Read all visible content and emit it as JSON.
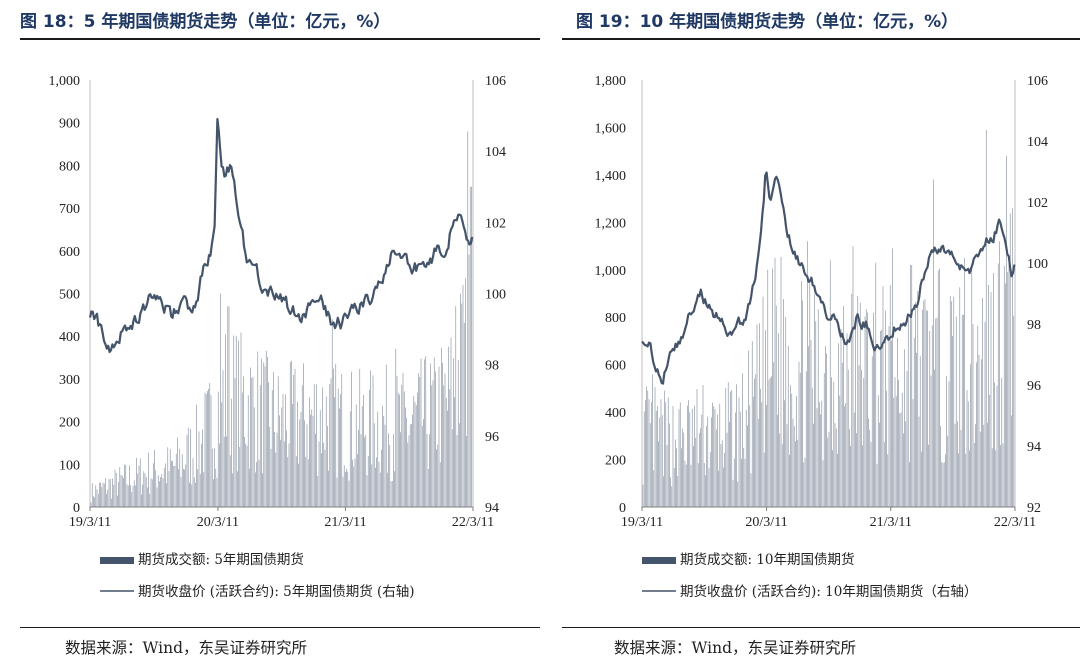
{
  "panels": [
    {
      "id": "left",
      "title": "图 18：5 年期国债期货走势（单位：亿元，%）",
      "source": "数据来源：Wind，东吴证券研究所",
      "legend": [
        "期货成交额: 5年期国债期货",
        "期货收盘价 (活跃合约): 5年期国债期货 (右轴)"
      ]
    },
    {
      "id": "right",
      "title": "图 19：10 年期国债期货走势（单位：亿元，%）",
      "source": "数据来源：Wind，东吴证券研究所",
      "legend": [
        "期货成交额: 10年期国债期货",
        "期货收盘价 (活跃合约): 10年期国债期货（右轴）"
      ]
    }
  ],
  "chart_data": [
    {
      "type": "bar+line",
      "x_ticks": [
        "19/3/11",
        "20/3/11",
        "21/3/11",
        "22/3/11"
      ],
      "x_range": [
        "2019-03-11",
        "2022-03-11"
      ],
      "left_axis": {
        "ticks": [
          "0",
          "100",
          "200",
          "300",
          "400",
          "500",
          "600",
          "700",
          "800",
          "900",
          "1,000"
        ],
        "ylim": [
          0,
          1000
        ]
      },
      "right_axis": {
        "ticks": [
          "94",
          "96",
          "98",
          "100",
          "102",
          "104",
          "106"
        ],
        "ylim": [
          94,
          106
        ]
      },
      "series": [
        {
          "name": "期货成交额: 5年期国债期货",
          "kind": "bar",
          "axis": "left",
          "color": "#44546a",
          "points": [
            [
              "2019-03-11",
              40
            ],
            [
              "2019-05-01",
              60
            ],
            [
              "2019-07-01",
              80
            ],
            [
              "2019-09-01",
              100
            ],
            [
              "2019-11-01",
              110
            ],
            [
              "2020-01-01",
              160
            ],
            [
              "2020-02-15",
              220
            ],
            [
              "2020-03-11",
              280
            ],
            [
              "2020-04-01",
              320
            ],
            [
              "2020-05-15",
              300
            ],
            [
              "2020-07-01",
              280
            ],
            [
              "2020-09-01",
              240
            ],
            [
              "2020-11-01",
              250
            ],
            [
              "2021-01-01",
              260
            ],
            [
              "2021-03-11",
              240
            ],
            [
              "2021-05-01",
              230
            ],
            [
              "2021-07-01",
              240
            ],
            [
              "2021-09-01",
              230
            ],
            [
              "2021-11-01",
              260
            ],
            [
              "2022-01-01",
              300
            ],
            [
              "2022-02-15",
              420
            ],
            [
              "2022-03-11",
              480
            ]
          ],
          "spikes": [
            [
              "2020-03-20",
              500
            ],
            [
              "2020-04-10",
              470
            ],
            [
              "2021-02-01",
              440
            ],
            [
              "2021-08-01",
              370
            ],
            [
              "2021-11-20",
              350
            ],
            [
              "2022-01-20",
              470
            ],
            [
              "2022-02-10",
              520
            ],
            [
              "2022-02-25",
              880
            ],
            [
              "2022-03-05",
              750
            ]
          ]
        },
        {
          "name": "期货收盘价 (活跃合约): 5年期国债期货 (右轴)",
          "kind": "line",
          "axis": "right",
          "color": "#44546a",
          "points": [
            [
              "2019-03-11",
              99.5
            ],
            [
              "2019-04-01",
              99.3
            ],
            [
              "2019-04-20",
              98.6
            ],
            [
              "2019-05-10",
              98.4
            ],
            [
              "2019-06-01",
              98.8
            ],
            [
              "2019-07-01",
              99.2
            ],
            [
              "2019-08-01",
              99.4
            ],
            [
              "2019-09-01",
              99.9
            ],
            [
              "2019-09-20",
              99.7
            ],
            [
              "2019-10-15",
              99.6
            ],
            [
              "2019-11-01",
              99.4
            ],
            [
              "2019-11-20",
              99.7
            ],
            [
              "2019-12-15",
              99.6
            ],
            [
              "2020-01-10",
              99.8
            ],
            [
              "2020-02-01",
              100.8
            ],
            [
              "2020-02-20",
              101.2
            ],
            [
              "2020-03-01",
              101.5
            ],
            [
              "2020-03-09",
              104.9
            ],
            [
              "2020-03-20",
              103.8
            ],
            [
              "2020-04-01",
              103.4
            ],
            [
              "2020-04-20",
              103.6
            ],
            [
              "2020-05-10",
              102.0
            ],
            [
              "2020-06-01",
              101.0
            ],
            [
              "2020-07-01",
              100.6
            ],
            [
              "2020-08-01",
              100.0
            ],
            [
              "2020-09-01",
              99.8
            ],
            [
              "2020-10-01",
              99.6
            ],
            [
              "2020-11-01",
              99.3
            ],
            [
              "2020-12-01",
              99.7
            ],
            [
              "2021-01-01",
              99.8
            ],
            [
              "2021-02-01",
              99.2
            ],
            [
              "2021-03-01",
              99.2
            ],
            [
              "2021-04-01",
              99.4
            ],
            [
              "2021-05-01",
              99.7
            ],
            [
              "2021-06-01",
              99.9
            ],
            [
              "2021-07-01",
              100.6
            ],
            [
              "2021-07-20",
              101.2
            ],
            [
              "2021-08-20",
              101.1
            ],
            [
              "2021-09-20",
              100.8
            ],
            [
              "2021-10-20",
              100.6
            ],
            [
              "2021-11-20",
              101.1
            ],
            [
              "2021-12-20",
              101.4
            ],
            [
              "2022-01-10",
              101.9
            ],
            [
              "2022-01-25",
              102.3
            ],
            [
              "2022-02-05",
              102.0
            ],
            [
              "2022-02-20",
              101.4
            ],
            [
              "2022-03-01",
              101.1
            ],
            [
              "2022-03-11",
              101.4
            ]
          ]
        }
      ]
    },
    {
      "type": "bar+line",
      "x_ticks": [
        "19/3/11",
        "20/3/11",
        "21/3/11",
        "22/3/11"
      ],
      "x_range": [
        "2019-03-11",
        "2022-03-11"
      ],
      "left_axis": {
        "ticks": [
          "0",
          "200",
          "400",
          "600",
          "800",
          "1,000",
          "1,200",
          "1,400",
          "1,600",
          "1,800"
        ],
        "ylim": [
          0,
          1800
        ]
      },
      "right_axis": {
        "ticks": [
          "92",
          "94",
          "96",
          "98",
          "100",
          "102",
          "104",
          "106"
        ],
        "ylim": [
          92,
          106
        ]
      },
      "series": [
        {
          "name": "期货成交额: 10年期国债期货",
          "kind": "bar",
          "axis": "left",
          "color": "#44546a",
          "points": [
            [
              "2019-03-11",
              380
            ],
            [
              "2019-05-01",
              360
            ],
            [
              "2019-07-01",
              340
            ],
            [
              "2019-09-01",
              380
            ],
            [
              "2019-11-01",
              360
            ],
            [
              "2020-01-01",
              420
            ],
            [
              "2020-02-15",
              560
            ],
            [
              "2020-03-11",
              700
            ],
            [
              "2020-04-15",
              800
            ],
            [
              "2020-06-01",
              720
            ],
            [
              "2020-08-01",
              680
            ],
            [
              "2020-10-01",
              700
            ],
            [
              "2020-12-01",
              680
            ],
            [
              "2021-02-01",
              700
            ],
            [
              "2021-04-01",
              660
            ],
            [
              "2021-06-01",
              700
            ],
            [
              "2021-08-01",
              720
            ],
            [
              "2021-10-01",
              700
            ],
            [
              "2021-12-01",
              760
            ],
            [
              "2022-01-15",
              820
            ],
            [
              "2022-02-15",
              900
            ],
            [
              "2022-03-11",
              950
            ]
          ],
          "spikes": [
            [
              "2019-04-10",
              560
            ],
            [
              "2020-03-15",
              1000
            ],
            [
              "2020-04-05",
              1050
            ],
            [
              "2020-07-10",
              1120
            ],
            [
              "2020-09-15",
              1040
            ],
            [
              "2020-11-20",
              1100
            ],
            [
              "2021-01-25",
              1030
            ],
            [
              "2021-03-15",
              1090
            ],
            [
              "2021-05-10",
              1020
            ],
            [
              "2021-07-15",
              1380
            ],
            [
              "2021-10-15",
              1050
            ],
            [
              "2021-12-15",
              1590
            ],
            [
              "2022-01-25",
              1120
            ],
            [
              "2022-02-15",
              1480
            ],
            [
              "2022-03-05",
              1260
            ]
          ]
        },
        {
          "name": "期货收盘价 (活跃合约): 10年期国债期货（右轴）",
          "kind": "line",
          "axis": "right",
          "color": "#44546a",
          "points": [
            [
              "2019-03-11",
              97.6
            ],
            [
              "2019-04-01",
              97.4
            ],
            [
              "2019-04-20",
              96.6
            ],
            [
              "2019-05-10",
              96.2
            ],
            [
              "2019-06-01",
              97.0
            ],
            [
              "2019-07-01",
              97.5
            ],
            [
              "2019-08-01",
              98.4
            ],
            [
              "2019-09-01",
              99.0
            ],
            [
              "2019-10-01",
              98.4
            ],
            [
              "2019-11-01",
              98.0
            ],
            [
              "2019-12-01",
              97.6
            ],
            [
              "2020-01-10",
              98.3
            ],
            [
              "2020-02-01",
              99.3
            ],
            [
              "2020-02-20",
              100.6
            ],
            [
              "2020-03-09",
              103.1
            ],
            [
              "2020-03-20",
              102.2
            ],
            [
              "2020-04-10",
              102.8
            ],
            [
              "2020-05-10",
              101.1
            ],
            [
              "2020-06-01",
              100.3
            ],
            [
              "2020-07-01",
              99.6
            ],
            [
              "2020-08-01",
              99.2
            ],
            [
              "2020-09-01",
              98.5
            ],
            [
              "2020-10-01",
              98.0
            ],
            [
              "2020-11-01",
              97.3
            ],
            [
              "2020-12-01",
              98.2
            ],
            [
              "2021-01-01",
              98.0
            ],
            [
              "2021-02-01",
              97.2
            ],
            [
              "2021-03-01",
              97.5
            ],
            [
              "2021-04-01",
              98.0
            ],
            [
              "2021-05-01",
              98.3
            ],
            [
              "2021-06-01",
              98.9
            ],
            [
              "2021-07-01",
              100.3
            ],
            [
              "2021-07-20",
              100.6
            ],
            [
              "2021-08-20",
              100.5
            ],
            [
              "2021-09-20",
              99.9
            ],
            [
              "2021-10-20",
              99.6
            ],
            [
              "2021-11-20",
              100.2
            ],
            [
              "2021-12-20",
              100.7
            ],
            [
              "2022-01-10",
              101.0
            ],
            [
              "2022-01-25",
              101.4
            ],
            [
              "2022-02-05",
              101.1
            ],
            [
              "2022-02-20",
              100.3
            ],
            [
              "2022-03-01",
              99.6
            ],
            [
              "2022-03-11",
              100.1
            ]
          ]
        }
      ]
    }
  ]
}
